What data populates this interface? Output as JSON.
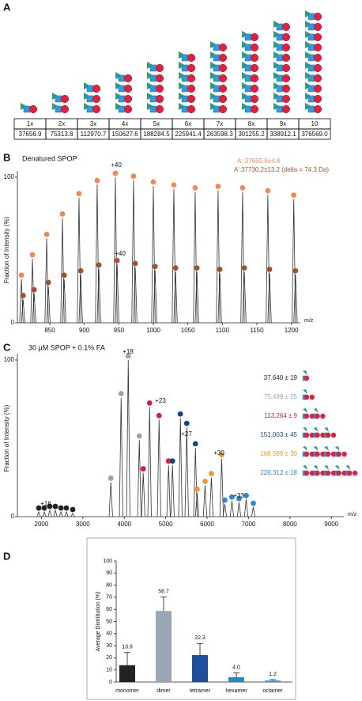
{
  "panel_labels": [
    "A",
    "B",
    "C",
    "D"
  ],
  "panel_a": {
    "headers": [
      "1x",
      "2x",
      "3x",
      "4x",
      "5x",
      "6x",
      "7x",
      "8x",
      "9x",
      "10"
    ],
    "masses": [
      "37656.9",
      "75313.8",
      "112970.7",
      "150627.6",
      "188284.5",
      "225941.4",
      "263598.3",
      "301255.2",
      "338912.1",
      "376569.0"
    ]
  },
  "chart_data": [
    {
      "type": "spectrum",
      "title": "Denatured SPOP",
      "xlabel": "m/z",
      "ylabel": "Fraction of Intensity (%)",
      "xlim": [
        803,
        1213
      ],
      "ylim": [
        0,
        100
      ],
      "xticks": [
        850,
        900,
        950,
        1000,
        1050,
        1100,
        1150,
        1200
      ],
      "yticks": [
        0,
        100
      ],
      "series": [
        {
          "color": "#ef8a55",
          "x": [
            808.8,
            824.8,
            845.4,
            868.3,
            892.3,
            918.6,
            945.0,
            971.3,
            1000.0,
            1029.7,
            1060.6,
            1093.8,
            1129.3,
            1165.9,
            1203.5
          ],
          "values": [
            30,
            44,
            58,
            72,
            86,
            95,
            100,
            98,
            94,
            92,
            90,
            91,
            90,
            88,
            85
          ]
        },
        {
          "color": "#a0522d",
          "x": [
            811.3,
            827.3,
            847.9,
            870.8,
            894.8,
            921.1,
            947.5,
            973.8,
            1002.5,
            1032.2,
            1063.1,
            1096.3,
            1131.8,
            1168.4,
            1206.0
          ],
          "values": [
            16,
            20,
            25,
            30,
            33,
            37,
            40,
            38,
            36,
            35,
            35,
            34,
            35,
            34,
            33
          ]
        }
      ],
      "annotations": [
        "+40",
        "+40",
        "A: 37655.9±4.8",
        "A':37730.2±13.2 (delta = 74.3 Da)"
      ]
    },
    {
      "type": "spectrum",
      "title": "30 µM SPOP + 0.1% FA",
      "xlabel": "m/z",
      "ylabel": "Fraction of Intensity (%)",
      "xlim": [
        1420,
        9300
      ],
      "ylim": [
        0,
        100
      ],
      "xticks": [
        2000,
        3000,
        4000,
        5000,
        6000,
        7000,
        8000,
        9000
      ],
      "yticks": [
        0,
        100
      ],
      "series": [
        {
          "name": "37,640 ± 19",
          "color": "#222222",
          "x": [
            1935,
            2069,
            2202,
            2336,
            2470,
            2603,
            2756
          ],
          "values": [
            3,
            3,
            4,
            4,
            3,
            3,
            2
          ]
        },
        {
          "name": "75,499 ± 25",
          "color": "#93a3b8",
          "x": [
            3676,
            3924,
            4096,
            4363
          ],
          "values": [
            22,
            76,
            100,
            49
          ]
        },
        {
          "name": "113,264 ± 9",
          "color": "#d0213a",
          "x": [
            4458,
            4611,
            4840,
            5069
          ],
          "values": [
            28,
            70,
            62,
            33
          ]
        },
        {
          "name": "151,003 ± 45",
          "color": "#1a3f8c",
          "x": [
            5164,
            5355,
            5508,
            5718
          ],
          "values": [
            33,
            63,
            57,
            44
          ]
        },
        {
          "name": "188,589 ± 30",
          "color": "#f0962f",
          "x": [
            5759,
            5950,
            6103,
            6351
          ],
          "values": [
            15,
            20,
            25,
            37
          ]
        },
        {
          "name": "226,312 ± 18",
          "color": "#2a8ad0",
          "x": [
            6427,
            6599,
            6771,
            6943,
            7115
          ],
          "values": [
            8,
            10,
            9,
            11,
            6
          ]
        }
      ],
      "annotations": [
        "+16",
        "+18",
        "+23",
        "+27",
        "+30",
        "+33"
      ]
    },
    {
      "type": "bar",
      "ylabel": "Average Distribution (%)",
      "categories": [
        "monomer",
        "dimer",
        "tetramer",
        "hexamer",
        "octamer"
      ],
      "values": [
        13.9,
        58.7,
        22.3,
        4.0,
        1.2
      ],
      "value_labels": [
        "13.9",
        "58.7",
        "22.3",
        "4.0",
        "1.2"
      ],
      "errors": [
        10.5,
        11.5,
        9.5,
        3.5,
        0.8
      ],
      "colors": [
        "#222222",
        "#9aa6b5",
        "#1f4e9c",
        "#2a86c5",
        "#2a9ad6"
      ],
      "ylim": [
        0,
        100
      ],
      "yticks": [
        0,
        10,
        20,
        30,
        40,
        50,
        60,
        70,
        80,
        90,
        100
      ]
    }
  ]
}
